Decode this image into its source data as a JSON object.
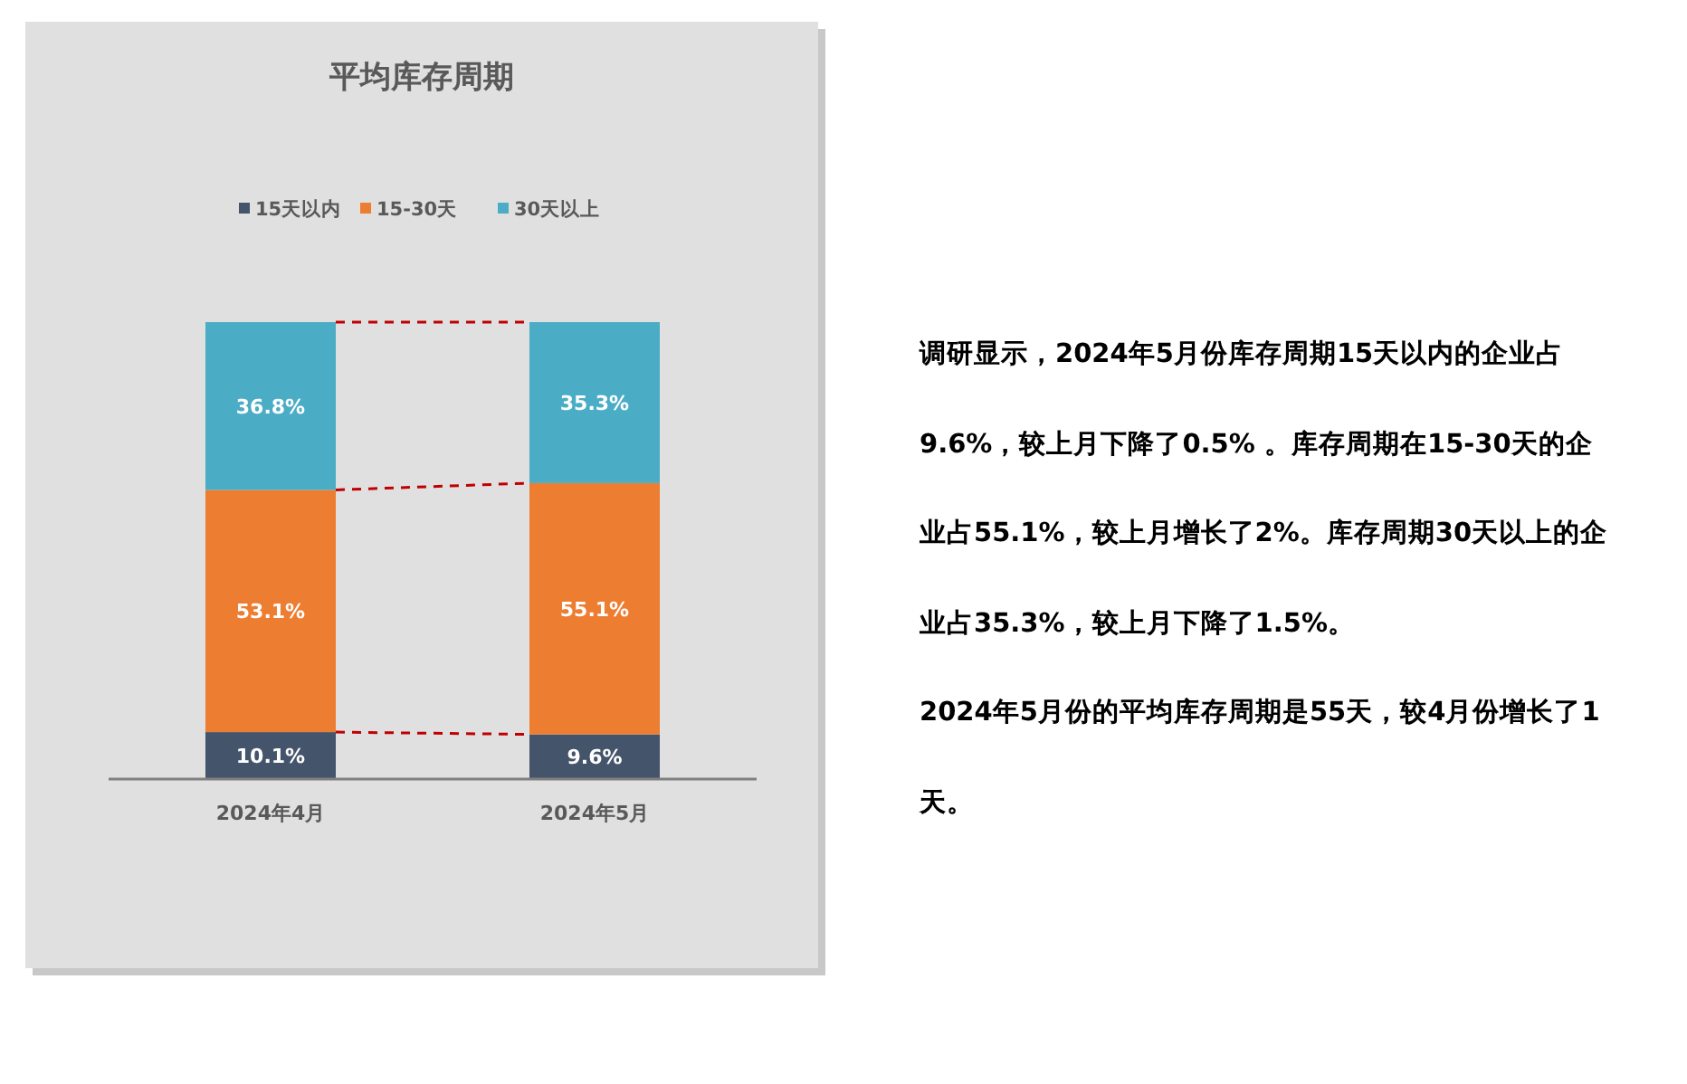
{
  "chart_data": {
    "type": "bar",
    "title": "平均库存周期",
    "stacked": true,
    "legend": "top",
    "categories": [
      "2024年4月",
      "2024年5月"
    ],
    "series": [
      {
        "name": "15天以内",
        "color": "#44546a",
        "values": [
          10.1,
          9.6
        ],
        "value_labels": [
          "10.1%",
          "9.6%"
        ]
      },
      {
        "name": "15-30天",
        "color": "#ed7d31",
        "values": [
          53.1,
          55.1
        ],
        "value_labels": [
          "53.1%",
          "55.1%"
        ]
      },
      {
        "name": "30天以上",
        "color": "#4bacc6",
        "values": [
          36.8,
          35.3
        ],
        "value_labels": [
          "36.8%",
          "35.3%"
        ]
      }
    ],
    "annotations": [
      "调研显示，2024年5月份库存周期15天以内的企业占9.6%，较上月下降了0.5% 。库存周期在15-30天的企业占55.1%，较上月增长了2%。库存周期30天以上的企业占35.3%，较上月下降了1.5%。",
      "2024年5月份的平均库存周期是55天，较4月份增长了1天。"
    ]
  }
}
